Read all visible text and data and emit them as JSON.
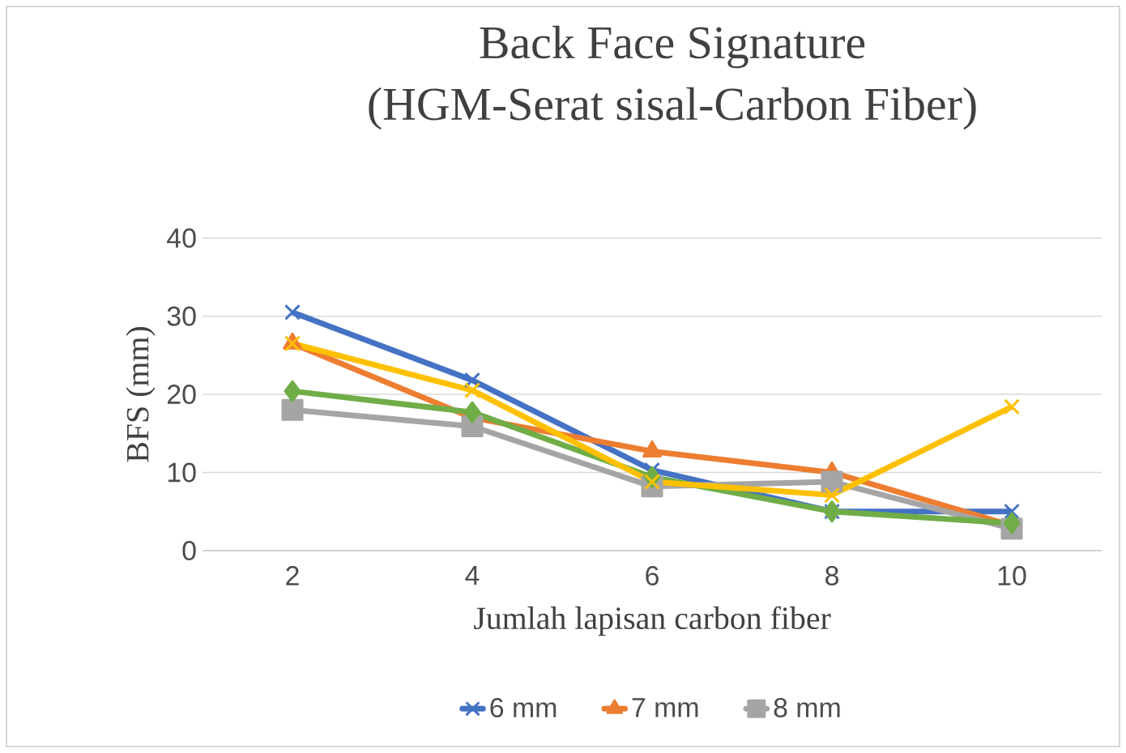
{
  "chart_data": {
    "type": "line",
    "title": "Back Face Signature",
    "subtitle": "(HGM-Serat sisal-Carbon Fiber)",
    "xlabel": "Jumlah lapisan carbon fiber",
    "ylabel": "BFS (mm)",
    "categories": [
      "2",
      "4",
      "6",
      "8",
      "10"
    ],
    "ylim": [
      0,
      40
    ],
    "yticks": [
      0,
      10,
      20,
      30,
      40
    ],
    "grid": "y",
    "legend": "bottom",
    "series": [
      {
        "name": "6 mm",
        "color": "#4472c4",
        "marker": "cross",
        "values": [
          30.5,
          21.8,
          10.3,
          5.0,
          5.0
        ]
      },
      {
        "name": "7 mm",
        "color": "#ed7d31",
        "marker": "triangle",
        "values": [
          26.5,
          17.0,
          12.7,
          10.0,
          3.2
        ]
      },
      {
        "name": "8 mm",
        "color": "#a5a5a5",
        "marker": "square",
        "values": [
          18.0,
          15.9,
          8.2,
          8.8,
          2.8
        ]
      },
      {
        "color": "#70ad47",
        "marker": "diamond",
        "values": [
          20.4,
          17.7,
          9.4,
          5.0,
          3.5
        ]
      },
      {
        "color": "#ffc000",
        "marker": "cross",
        "values": [
          26.5,
          20.5,
          8.8,
          7.1,
          18.4
        ]
      }
    ]
  }
}
